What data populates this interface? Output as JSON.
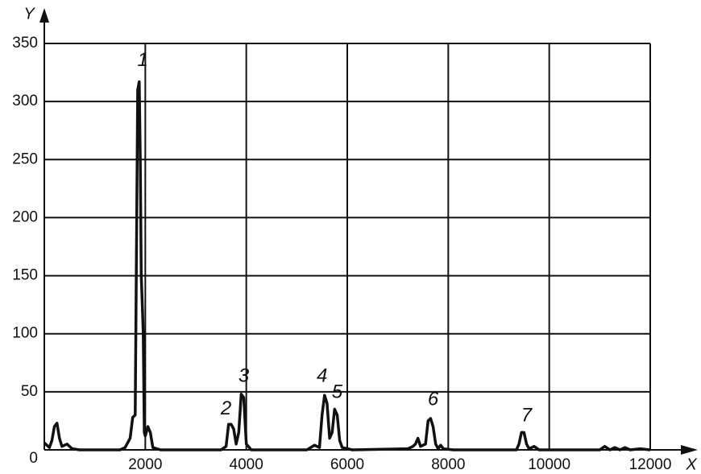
{
  "chart_data": {
    "type": "line",
    "x_label": "X",
    "y_label": "Y",
    "x": [
      0,
      100,
      150,
      200,
      250,
      300,
      350,
      450,
      550,
      700,
      1500,
      1600,
      1700,
      1750,
      1800,
      1830,
      1850,
      1880,
      1900,
      1920,
      1940,
      1960,
      1980,
      2000,
      2050,
      2100,
      2150,
      2300,
      3500,
      3600,
      3650,
      3700,
      3750,
      3800,
      3850,
      3900,
      3950,
      4000,
      4100,
      5200,
      5350,
      5450,
      5500,
      5550,
      5600,
      5650,
      5700,
      5750,
      5800,
      5850,
      5900,
      6100,
      7200,
      7300,
      7350,
      7400,
      7450,
      7550,
      7600,
      7650,
      7700,
      7750,
      7800,
      7850,
      7900,
      8100,
      9350,
      9400,
      9450,
      9500,
      9550,
      9600,
      9700,
      9800,
      11000,
      11100,
      11200,
      11300,
      11400,
      11500,
      11600,
      11800,
      12000
    ],
    "series": [
      {
        "color": "#111111",
        "values": [
          6,
          2,
          8,
          20,
          23,
          10,
          3,
          5,
          1,
          0,
          0,
          2,
          10,
          28,
          30,
          200,
          310,
          317,
          250,
          150,
          125,
          100,
          15,
          12,
          20,
          15,
          2,
          0,
          0,
          3,
          22,
          22,
          18,
          5,
          15,
          48,
          45,
          5,
          0,
          0,
          4,
          2,
          30,
          47,
          40,
          10,
          15,
          35,
          30,
          8,
          2,
          0,
          1,
          3,
          5,
          10,
          3,
          5,
          25,
          27,
          20,
          5,
          1,
          4,
          1,
          0,
          0,
          5,
          15,
          15,
          5,
          1,
          3,
          0,
          0,
          3,
          0,
          2,
          0,
          2,
          0,
          1,
          0
        ]
      }
    ],
    "xlim": [
      0,
      12000
    ],
    "ylim": [
      0,
      350
    ],
    "xticks": [
      2000,
      4000,
      6000,
      8000,
      10000,
      12000
    ],
    "yticks": [
      0,
      50,
      100,
      150,
      200,
      250,
      300,
      350
    ],
    "grid": true,
    "annotations": [
      {
        "text": "1",
        "x": 1950,
        "y": 335
      },
      {
        "text": "2",
        "x": 3600,
        "y": 35
      },
      {
        "text": "3",
        "x": 3950,
        "y": 63
      },
      {
        "text": "4",
        "x": 5500,
        "y": 63
      },
      {
        "text": "5",
        "x": 5800,
        "y": 49
      },
      {
        "text": "6",
        "x": 7700,
        "y": 43
      },
      {
        "text": "7",
        "x": 9550,
        "y": 29
      }
    ]
  }
}
